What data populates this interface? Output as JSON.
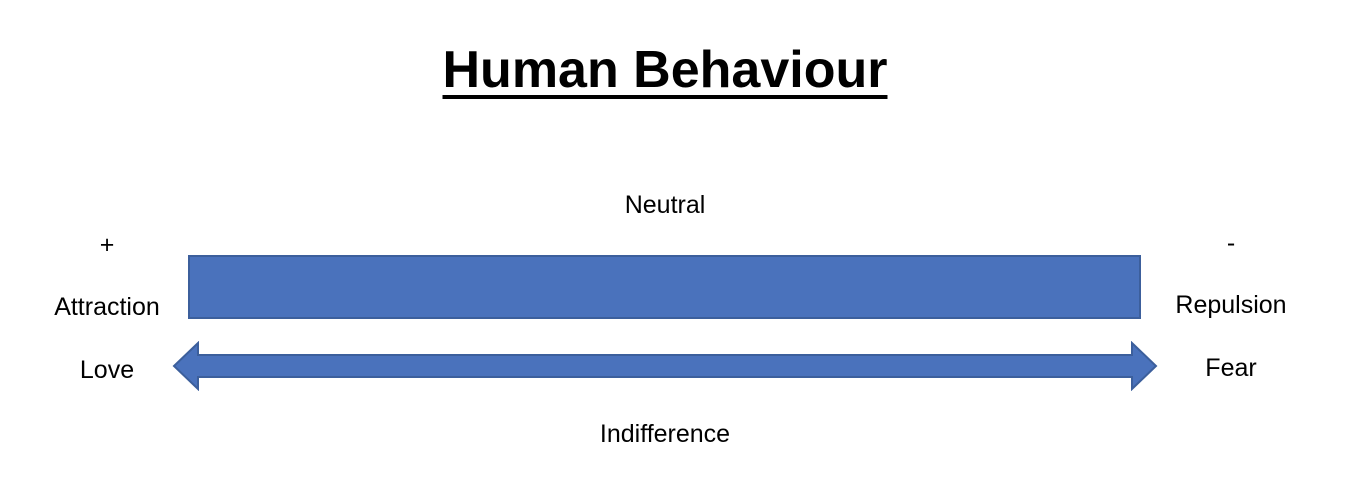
{
  "title": "Human Behaviour",
  "labels": {
    "neutral": "Neutral",
    "indifference": "Indifference",
    "plus": "+",
    "minus": "-",
    "attraction": "Attraction",
    "repulsion": "Repulsion",
    "love": "Love",
    "fear": "Fear"
  },
  "colors": {
    "bar_fill": "#4a72bc",
    "bar_border": "#3c5f9c",
    "arrow_fill": "#4a72bc",
    "arrow_border": "#3c5f9c"
  }
}
